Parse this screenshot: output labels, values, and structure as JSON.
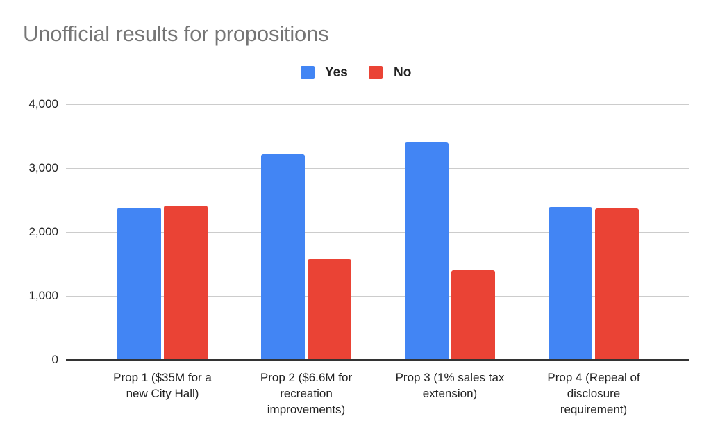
{
  "chart_data": {
    "type": "bar",
    "title": "Unofficial results for propositions",
    "xlabel": "",
    "ylabel": "",
    "ylim": [
      0,
      4000
    ],
    "yticks": [
      "0",
      "1,000",
      "2,000",
      "3,000",
      "4,000"
    ],
    "grid": true,
    "legend_position": "top",
    "categories": [
      "Prop 1 ($35M for a new City Hall)",
      "Prop 2 ($6.6M for recreation improvements)",
      "Prop 3 (1% sales tax extension)",
      "Prop 4 (Repeal of disclosure requirement)"
    ],
    "series": [
      {
        "name": "Yes",
        "color": "#4285F4",
        "values": [
          2380,
          3220,
          3400,
          2390
        ]
      },
      {
        "name": "No",
        "color": "#EA4335",
        "values": [
          2410,
          1575,
          1405,
          2370
        ]
      }
    ]
  },
  "title": "Unofficial results for propositions",
  "legend": [
    {
      "label": "Yes",
      "color": "#4285F4"
    },
    {
      "label": "No",
      "color": "#EA4335"
    }
  ],
  "y_axis": {
    "ticks": [
      "4,000",
      "3,000",
      "2,000",
      "1,000",
      "0"
    ]
  },
  "x_axis": {
    "labels": [
      [
        "Prop 1 ($35M for a",
        "new City Hall)"
      ],
      [
        "Prop 2 ($6.6M for",
        "recreation",
        "improvements)"
      ],
      [
        "Prop 3 (1% sales tax",
        "extension)"
      ],
      [
        "Prop 4 (Repeal of",
        "disclosure",
        "requirement)"
      ]
    ]
  }
}
